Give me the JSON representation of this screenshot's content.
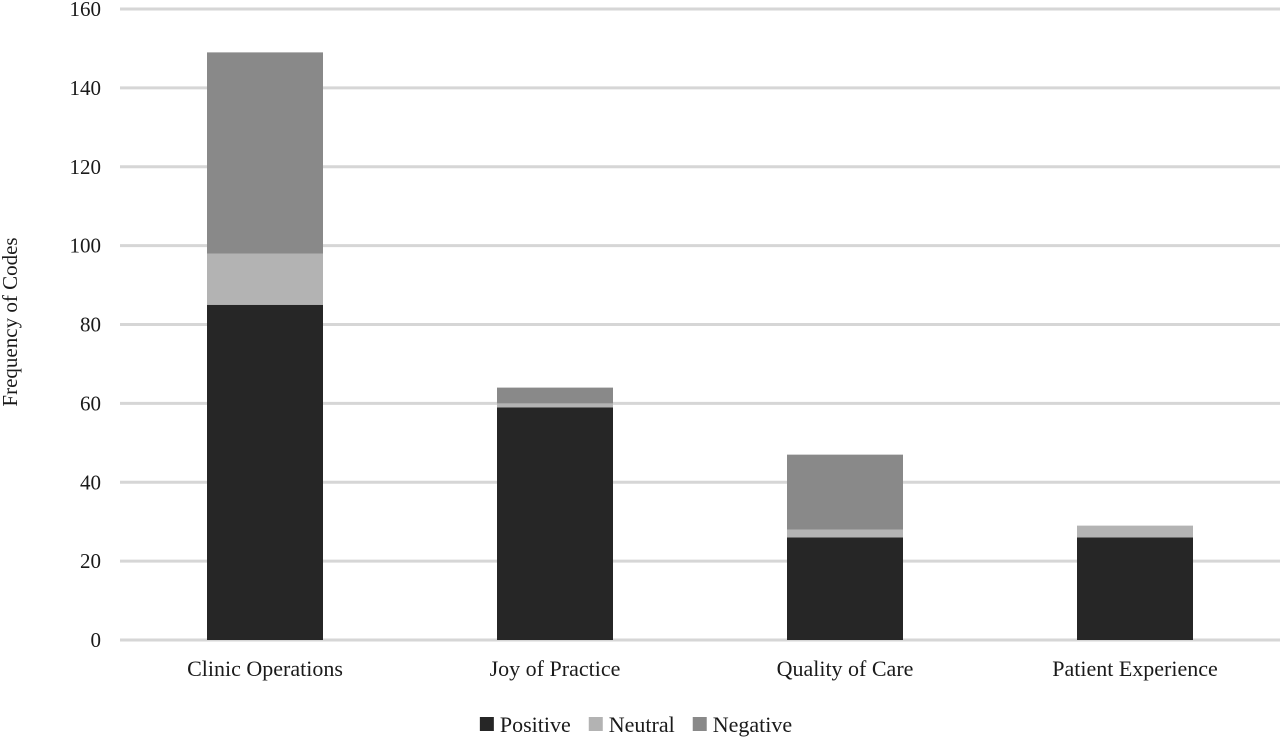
{
  "chart_data": {
    "type": "bar",
    "stacked": true,
    "categories": [
      "Clinic Operations",
      "Joy of Practice",
      "Quality of Care",
      "Patient Experience"
    ],
    "series": [
      {
        "name": "Positive",
        "values": [
          85,
          59,
          26,
          26
        ],
        "color": "#262626"
      },
      {
        "name": "Neutral",
        "values": [
          13,
          1,
          2,
          3
        ],
        "color": "#b3b3b3"
      },
      {
        "name": "Negative",
        "values": [
          51,
          4,
          19,
          0
        ],
        "color": "#898989"
      }
    ],
    "title": "",
    "xlabel": "",
    "ylabel": "Frequency of Codes",
    "ylim": [
      0,
      160
    ],
    "yticks": [
      0,
      20,
      40,
      60,
      80,
      100,
      120,
      140,
      160
    ],
    "grid": true,
    "legend_position": "bottom"
  }
}
